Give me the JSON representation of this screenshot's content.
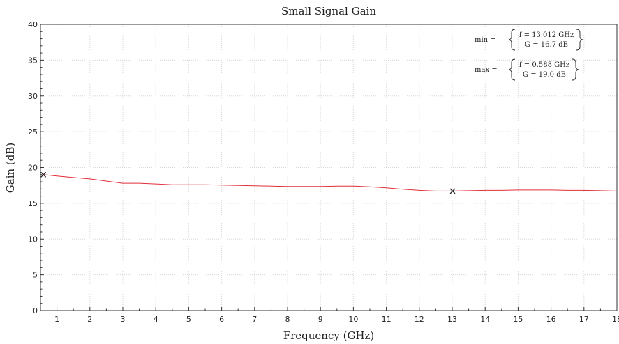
{
  "chart_data": {
    "type": "line",
    "title": "Small Signal Gain",
    "xlabel": "Frequency (GHz)",
    "ylabel": "Gain (dB)",
    "xlim": [
      0.5,
      18
    ],
    "ylim": [
      0,
      40
    ],
    "x_ticks": [
      1,
      2,
      3,
      4,
      5,
      6,
      7,
      8,
      9,
      10,
      11,
      12,
      13,
      14,
      15,
      16,
      17,
      18
    ],
    "x_tick_labels": [
      "1",
      "2",
      "3",
      "4",
      "5",
      "6",
      "7",
      "8",
      "9",
      "10",
      "11",
      "12",
      "13",
      "14",
      "15",
      "16",
      "17",
      "18"
    ],
    "y_ticks": [
      0,
      5,
      10,
      15,
      20,
      25,
      30,
      35,
      40
    ],
    "y_tick_labels": [
      "0",
      "5",
      "10",
      "15",
      "20",
      "25",
      "30",
      "35",
      "40"
    ],
    "grid": true,
    "series": [
      {
        "color": "#e0303a",
        "x": [
          0.588,
          1,
          1.5,
          2,
          2.5,
          3,
          3.5,
          4,
          4.5,
          5,
          5.5,
          6,
          6.5,
          7,
          7.5,
          8,
          8.5,
          9,
          9.5,
          10,
          10.5,
          11,
          11.5,
          12,
          12.5,
          13.012,
          13.5,
          14,
          14.5,
          15,
          15.5,
          16,
          16.5,
          17,
          17.5,
          18
        ],
        "y": [
          19.0,
          18.8,
          18.6,
          18.4,
          18.1,
          17.8,
          17.8,
          17.7,
          17.6,
          17.6,
          17.6,
          17.55,
          17.5,
          17.45,
          17.4,
          17.35,
          17.35,
          17.35,
          17.4,
          17.4,
          17.3,
          17.15,
          16.95,
          16.8,
          16.7,
          16.7,
          16.75,
          16.8,
          16.8,
          16.85,
          16.85,
          16.85,
          16.8,
          16.8,
          16.75,
          16.7
        ]
      }
    ],
    "markers": [
      {
        "x": 13.012,
        "y": 16.7,
        "label": "min"
      },
      {
        "x": 0.588,
        "y": 19.0,
        "label": "max"
      }
    ],
    "annotations": [
      {
        "name": "min",
        "prefix": "min =",
        "f_line": "f = 13.012 GHz",
        "g_line": "G = 16.7 dB"
      },
      {
        "name": "max",
        "prefix": "max =",
        "f_line": "f = 0.588 GHz",
        "g_line": "G = 19.0 dB"
      }
    ]
  }
}
